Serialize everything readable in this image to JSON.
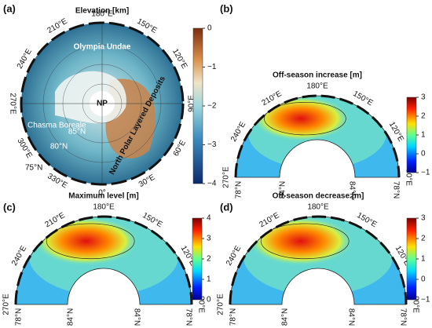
{
  "figure": {
    "panels": [
      {
        "label": "(a)",
        "title": "Elevation [km]",
        "colorbar": [
          "0",
          "−1",
          "−2",
          "−3",
          "−4"
        ],
        "longitudes": [
          "180°E",
          "150°E",
          "120°E",
          "90°E",
          "60°E",
          "30°E",
          "0°",
          "330°E",
          "300°E",
          "270°E",
          "240°E",
          "210°E"
        ],
        "annotations": [
          "Olympia Undae",
          "NP",
          "Chasma Boreale",
          "85°N",
          "80°N",
          "75°N",
          "North Polar Layered Deposits"
        ]
      },
      {
        "label": "(b)",
        "title": "Off-season increase [m]",
        "colorbar": [
          "3",
          "2",
          "1",
          "0",
          "−1"
        ],
        "longitudes": [
          "270°E",
          "240°E",
          "210°E",
          "180°E",
          "150°E",
          "120°E",
          "90°E"
        ],
        "latitudes": [
          "78°N",
          "84°N",
          "84°N",
          "78°N"
        ]
      },
      {
        "label": "(c)",
        "title": "Maximum level [m]",
        "colorbar": [
          "4",
          "3",
          "2",
          "1",
          "0"
        ],
        "longitudes": [
          "270°E",
          "240°E",
          "210°E",
          "180°E",
          "150°E",
          "120°E",
          "90°E"
        ],
        "latitudes": [
          "78°N",
          "84°N",
          "84°N",
          "78°N"
        ]
      },
      {
        "label": "(d)",
        "title": "Off-season decrease [m]",
        "colorbar": [
          "3",
          "2",
          "1",
          "0",
          "−1"
        ],
        "longitudes": [
          "270°E",
          "240°E",
          "210°E",
          "180°E",
          "150°E",
          "120°E",
          "90°E"
        ],
        "latitudes": [
          "78°N",
          "84°N",
          "84°N",
          "78°N"
        ]
      }
    ]
  }
}
